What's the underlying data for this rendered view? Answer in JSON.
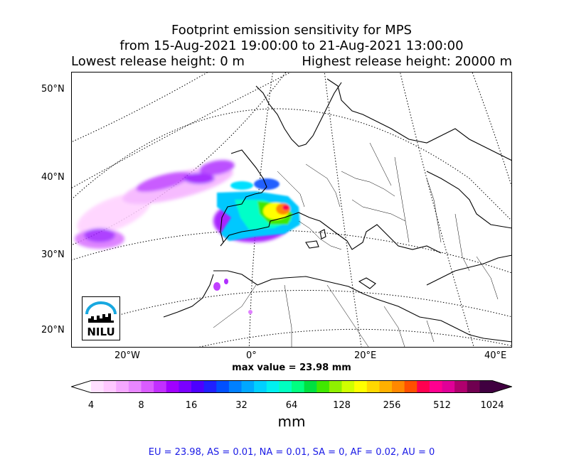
{
  "title": {
    "line1": "Footprint emission sensitivity for MPS",
    "line2": "from 15-Aug-2021 19:00:00 to 21-Aug-2021 13:00:00",
    "lowest": "Lowest release height: 0 m",
    "highest": "Highest release height: 20000 m"
  },
  "lat_labels": [
    "50°N",
    "40°N",
    "30°N",
    "20°N"
  ],
  "lon_labels": [
    "20°W",
    "0°",
    "20°E",
    "40°E"
  ],
  "max_value": "max value = 23.98 mm",
  "colorbar": {
    "ticks": [
      "4",
      "8",
      "16",
      "32",
      "64",
      "128",
      "256",
      "512",
      "1024"
    ],
    "unit": "mm",
    "colors": [
      "#ffe0ff",
      "#ffc8ff",
      "#f5a8ff",
      "#e887ff",
      "#da5cff",
      "#c22fff",
      "#a100ff",
      "#7a00ff",
      "#4d00ff",
      "#2020ff",
      "#0050ff",
      "#0080ff",
      "#00a8ff",
      "#00d0ff",
      "#00f0f0",
      "#00ffc0",
      "#00ff80",
      "#00e040",
      "#40e800",
      "#90f000",
      "#d0ff00",
      "#ffff00",
      "#ffd800",
      "#ffb000",
      "#ff8800",
      "#ff5000",
      "#ff0050",
      "#ff0090",
      "#e00098",
      "#b0006e",
      "#700050",
      "#400040"
    ]
  },
  "logo": {
    "text": "NILU"
  },
  "stats": "EU = 23.98,  AS = 0.01,  NA = 0.01,  SA = 0,  AF = 0.02,  AU = 0"
}
